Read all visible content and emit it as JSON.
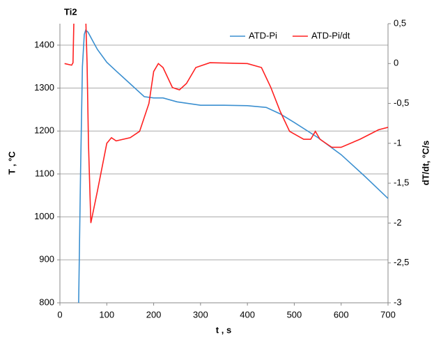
{
  "chart_data": {
    "type": "line",
    "title": "Ti2",
    "x_label": "t , s",
    "y_label": "T , °C",
    "y2_label": "dT/dt, °C/s",
    "xlim": [
      0,
      700
    ],
    "xticks": [
      0,
      100,
      200,
      300,
      400,
      500,
      600,
      700
    ],
    "ylim": [
      800,
      1450
    ],
    "yticks": [
      800,
      900,
      1000,
      1100,
      1200,
      1300,
      1400
    ],
    "y2lim": [
      -3,
      0.5
    ],
    "y2ticks": [
      {
        "value": -3,
        "label": "-3"
      },
      {
        "value": -2.5,
        "label": "-2,5"
      },
      {
        "value": -2,
        "label": "-2"
      },
      {
        "value": -1.5,
        "label": "-1,5"
      },
      {
        "value": -1,
        "label": "-1"
      },
      {
        "value": -0.5,
        "label": "-0,5"
      },
      {
        "value": 0,
        "label": "0"
      },
      {
        "value": 0.5,
        "label": "0,5"
      }
    ],
    "grid": true,
    "legend": "top-right",
    "series": [
      {
        "name": "ATD-Pi",
        "color": "#3a8fd0",
        "x": [
          40,
          44,
          48,
          52,
          55,
          60,
          70,
          80,
          100,
          120,
          150,
          180,
          200,
          220,
          250,
          300,
          350,
          400,
          440,
          470,
          500,
          550,
          600,
          650,
          700
        ],
        "values": [
          800,
          1100,
          1350,
          1425,
          1435,
          1430,
          1410,
          1390,
          1360,
          1340,
          1310,
          1280,
          1277,
          1277,
          1268,
          1260,
          1260,
          1259,
          1255,
          1240,
          1220,
          1185,
          1145,
          1095,
          1043
        ]
      },
      {
        "name": "ATD-Pi/dt",
        "color": "#ff2020",
        "axis": "y2",
        "x": [
          10,
          25,
          28,
          30,
          null,
          55,
          58,
          61,
          66,
          80,
          100,
          110,
          120,
          150,
          170,
          190,
          200,
          210,
          220,
          240,
          255,
          270,
          290,
          320,
          400,
          430,
          450,
          470,
          490,
          520,
          535,
          545,
          555,
          580,
          600,
          640,
          680,
          700
        ],
        "values": [
          0,
          -0.02,
          0.01,
          0.6,
          null,
          0.6,
          0,
          -1,
          -2,
          -1.6,
          -1,
          -0.93,
          -0.97,
          -0.93,
          -0.85,
          -0.5,
          -0.1,
          0,
          -0.05,
          -0.3,
          -0.33,
          -0.25,
          -0.05,
          0.01,
          0,
          -0.05,
          -0.3,
          -0.6,
          -0.85,
          -0.95,
          -0.95,
          -0.85,
          -0.95,
          -1.05,
          -1.05,
          -0.95,
          -0.83,
          -0.8
        ]
      }
    ]
  }
}
